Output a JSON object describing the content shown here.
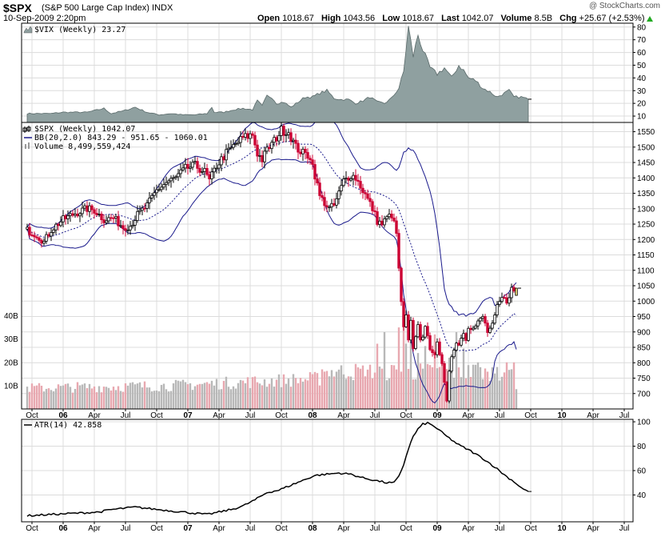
{
  "header": {
    "symbol": "$SPX",
    "name": "(S&P 500 Large Cap Index)",
    "exchange": "INDX",
    "watermark": "@ StockCharts.com",
    "date": "10-Sep-2009 2:20pm",
    "open_label": "Open",
    "open": "1018.67",
    "high_label": "High",
    "high": "1043.56",
    "low_label": "Low",
    "low": "1018.67",
    "last_label": "Last",
    "last": "1042.07",
    "volume_label": "Volume",
    "volume": "8.5B",
    "chg_label": "Chg",
    "chg": "+25.67 (+2.53%)"
  },
  "colors": {
    "vix_fill": "#8fa0a0",
    "bb": "#1a1a8c",
    "up": "#000000",
    "down": "#cc0033",
    "vol_up": "#b8b8b8",
    "vol_down": "#e8a8b0",
    "atr": "#000000"
  },
  "x_axis": {
    "labels": [
      {
        "text": "Oct",
        "i": 2,
        "year": false
      },
      {
        "text": "06",
        "i": 15,
        "year": true
      },
      {
        "text": "Apr",
        "i": 28,
        "year": false
      },
      {
        "text": "Jul",
        "i": 41,
        "year": false
      },
      {
        "text": "Oct",
        "i": 54,
        "year": false
      },
      {
        "text": "07",
        "i": 67,
        "year": true
      },
      {
        "text": "Apr",
        "i": 80,
        "year": false
      },
      {
        "text": "Jul",
        "i": 93,
        "year": false
      },
      {
        "text": "Oct",
        "i": 106,
        "year": false
      },
      {
        "text": "08",
        "i": 119,
        "year": true
      },
      {
        "text": "Apr",
        "i": 132,
        "year": false
      },
      {
        "text": "Jul",
        "i": 145,
        "year": false
      },
      {
        "text": "Oct",
        "i": 158,
        "year": false
      },
      {
        "text": "09",
        "i": 171,
        "year": true
      },
      {
        "text": "Apr",
        "i": 184,
        "year": false
      },
      {
        "text": "Jul",
        "i": 197,
        "year": false
      },
      {
        "text": "Oct",
        "i": 210,
        "year": false
      },
      {
        "text": "10",
        "i": 223,
        "year": true
      },
      {
        "text": "Apr",
        "i": 236,
        "year": false
      },
      {
        "text": "Jul",
        "i": 249,
        "year": false
      }
    ]
  },
  "chart_data": [
    {
      "type": "area",
      "legend": "$VIX (Weekly) 23.27",
      "last": 23.27,
      "y_ticks": [
        10,
        20,
        30,
        40,
        50,
        60,
        70,
        80
      ],
      "ylim": [
        5,
        83
      ],
      "grid": true,
      "anchors": [
        [
          0,
          12
        ],
        [
          10,
          12
        ],
        [
          15,
          13
        ],
        [
          25,
          13
        ],
        [
          32,
          16
        ],
        [
          35,
          12
        ],
        [
          40,
          14
        ],
        [
          45,
          17
        ],
        [
          50,
          13
        ],
        [
          55,
          11
        ],
        [
          60,
          12
        ],
        [
          65,
          11
        ],
        [
          70,
          11
        ],
        [
          75,
          12
        ],
        [
          77,
          17
        ],
        [
          78,
          13
        ],
        [
          82,
          13
        ],
        [
          86,
          15
        ],
        [
          90,
          16
        ],
        [
          94,
          15
        ],
        [
          96,
          22
        ],
        [
          98,
          18
        ],
        [
          100,
          26
        ],
        [
          102,
          25
        ],
        [
          104,
          20
        ],
        [
          107,
          21
        ],
        [
          110,
          17
        ],
        [
          113,
          21
        ],
        [
          116,
          25
        ],
        [
          119,
          25
        ],
        [
          122,
          28
        ],
        [
          125,
          30
        ],
        [
          128,
          24
        ],
        [
          131,
          23
        ],
        [
          134,
          23
        ],
        [
          137,
          20
        ],
        [
          140,
          22
        ],
        [
          143,
          25
        ],
        [
          146,
          21
        ],
        [
          149,
          20
        ],
        [
          152,
          24
        ],
        [
          155,
          32
        ],
        [
          157,
          45
        ],
        [
          159,
          80
        ],
        [
          161,
          57
        ],
        [
          163,
          74
        ],
        [
          165,
          62
        ],
        [
          168,
          48
        ],
        [
          171,
          43
        ],
        [
          174,
          48
        ],
        [
          177,
          40
        ],
        [
          180,
          50
        ],
        [
          182,
          46
        ],
        [
          184,
          40
        ],
        [
          187,
          38
        ],
        [
          190,
          32
        ],
        [
          193,
          29
        ],
        [
          196,
          25
        ],
        [
          199,
          28
        ],
        [
          201,
          30
        ],
        [
          203,
          25
        ],
        [
          206,
          25
        ],
        [
          208,
          24
        ],
        [
          209,
          23.27
        ]
      ]
    },
    {
      "type": "candlestick",
      "legend_price": "$SPX (Weekly) 1042.07",
      "legend_bb": "BB(20,2.0) 843.29 - 951.65 - 1060.01",
      "legend_volume": "Volume 8,499,559,424",
      "last": 1042.07,
      "bb": {
        "lower": 843.29,
        "middle": 951.65,
        "upper": 1060.01
      },
      "y_ticks": [
        700,
        750,
        800,
        850,
        900,
        950,
        1000,
        1050,
        1100,
        1150,
        1200,
        1250,
        1300,
        1350,
        1400,
        1450,
        1500,
        1550
      ],
      "ylim": [
        650,
        1580
      ],
      "grid": true,
      "close_anchors": [
        [
          0,
          1230
        ],
        [
          4,
          1215
        ],
        [
          7,
          1192
        ],
        [
          10,
          1232
        ],
        [
          15,
          1265
        ],
        [
          20,
          1285
        ],
        [
          25,
          1300
        ],
        [
          28,
          1295
        ],
        [
          32,
          1265
        ],
        [
          36,
          1270
        ],
        [
          40,
          1240
        ],
        [
          43,
          1245
        ],
        [
          46,
          1280
        ],
        [
          50,
          1310
        ],
        [
          54,
          1360
        ],
        [
          58,
          1385
        ],
        [
          62,
          1400
        ],
        [
          66,
          1430
        ],
        [
          70,
          1440
        ],
        [
          74,
          1420
        ],
        [
          76,
          1390
        ],
        [
          79,
          1440
        ],
        [
          83,
          1480
        ],
        [
          87,
          1510
        ],
        [
          90,
          1530
        ],
        [
          94,
          1540
        ],
        [
          96,
          1480
        ],
        [
          98,
          1460
        ],
        [
          100,
          1490
        ],
        [
          103,
          1520
        ],
        [
          106,
          1555
        ],
        [
          109,
          1550
        ],
        [
          112,
          1500
        ],
        [
          115,
          1480
        ],
        [
          118,
          1470
        ],
        [
          120,
          1410
        ],
        [
          122,
          1340
        ],
        [
          124,
          1320
        ],
        [
          126,
          1300
        ],
        [
          128,
          1310
        ],
        [
          130,
          1350
        ],
        [
          132,
          1390
        ],
        [
          135,
          1410
        ],
        [
          137,
          1400
        ],
        [
          140,
          1360
        ],
        [
          142,
          1330
        ],
        [
          144,
          1300
        ],
        [
          146,
          1260
        ],
        [
          148,
          1250
        ],
        [
          150,
          1270
        ],
        [
          152,
          1280
        ],
        [
          154,
          1220
        ],
        [
          155,
          1100
        ],
        [
          156,
          1000
        ],
        [
          157,
          910
        ],
        [
          158,
          950
        ],
        [
          159,
          870
        ],
        [
          160,
          930
        ],
        [
          161,
          840
        ],
        [
          162,
          890
        ],
        [
          163,
          920
        ],
        [
          164,
          880
        ],
        [
          165,
          890
        ],
        [
          166,
          910
        ],
        [
          167,
          880
        ],
        [
          168,
          850
        ],
        [
          169,
          840
        ],
        [
          170,
          830
        ],
        [
          171,
          860
        ],
        [
          172,
          820
        ],
        [
          173,
          790
        ],
        [
          174,
          740
        ],
        [
          175,
          680
        ],
        [
          176,
          780
        ],
        [
          177,
          820
        ],
        [
          178,
          840
        ],
        [
          179,
          870
        ],
        [
          180,
          860
        ],
        [
          181,
          880
        ],
        [
          182,
          900
        ],
        [
          183,
          880
        ],
        [
          184,
          920
        ],
        [
          186,
          910
        ],
        [
          188,
          930
        ],
        [
          189,
          940
        ],
        [
          190,
          950
        ],
        [
          192,
          900
        ],
        [
          194,
          920
        ],
        [
          196,
          980
        ],
        [
          198,
          1010
        ],
        [
          200,
          1000
        ],
        [
          202,
          1040
        ],
        [
          203,
          1030
        ],
        [
          204,
          1042.07
        ]
      ]
    },
    {
      "type": "bar",
      "name": "Volume",
      "y_ticks": [
        "10B",
        "20B",
        "30B",
        "40B"
      ],
      "y_tick_values": [
        10,
        20,
        30,
        40
      ],
      "ylim": [
        0,
        45
      ],
      "last": 8.5,
      "base_level": 8.5,
      "spikes": [
        [
          123,
          17
        ],
        [
          126,
          14
        ],
        [
          129,
          16
        ],
        [
          134,
          14
        ],
        [
          141,
          14
        ],
        [
          146,
          28
        ],
        [
          149,
          33
        ],
        [
          155,
          35
        ],
        [
          157,
          42
        ],
        [
          158,
          28
        ],
        [
          160,
          29
        ],
        [
          163,
          24
        ],
        [
          166,
          27
        ],
        [
          170,
          32
        ],
        [
          173,
          24
        ],
        [
          176,
          22
        ],
        [
          179,
          33
        ],
        [
          182,
          26
        ],
        [
          186,
          19
        ],
        [
          188,
          20
        ],
        [
          192,
          16
        ],
        [
          196,
          18
        ],
        [
          200,
          20
        ],
        [
          203,
          20
        ],
        [
          204,
          8.5
        ]
      ]
    },
    {
      "type": "line",
      "legend": "ATR(14) 42.858",
      "last": 42.858,
      "y_ticks": [
        40,
        60,
        80,
        100
      ],
      "ylim": [
        18,
        102
      ],
      "grid": true,
      "anchors": [
        [
          0,
          23
        ],
        [
          10,
          24
        ],
        [
          20,
          25
        ],
        [
          30,
          26
        ],
        [
          35,
          28
        ],
        [
          45,
          30
        ],
        [
          55,
          28
        ],
        [
          60,
          27
        ],
        [
          70,
          25
        ],
        [
          75,
          24
        ],
        [
          80,
          26
        ],
        [
          85,
          28
        ],
        [
          90,
          31
        ],
        [
          95,
          36
        ],
        [
          100,
          42
        ],
        [
          105,
          44
        ],
        [
          110,
          48
        ],
        [
          115,
          52
        ],
        [
          120,
          56
        ],
        [
          125,
          57
        ],
        [
          130,
          58
        ],
        [
          135,
          57
        ],
        [
          140,
          54
        ],
        [
          145,
          52
        ],
        [
          150,
          50
        ],
        [
          153,
          50
        ],
        [
          155,
          55
        ],
        [
          157,
          65
        ],
        [
          159,
          78
        ],
        [
          161,
          88
        ],
        [
          163,
          94
        ],
        [
          165,
          98
        ],
        [
          167,
          99
        ],
        [
          170,
          96
        ],
        [
          175,
          88
        ],
        [
          180,
          81
        ],
        [
          185,
          76
        ],
        [
          190,
          70
        ],
        [
          195,
          63
        ],
        [
          200,
          55
        ],
        [
          203,
          51
        ],
        [
          206,
          46
        ],
        [
          208,
          43.5
        ],
        [
          209,
          42.858
        ]
      ]
    }
  ]
}
